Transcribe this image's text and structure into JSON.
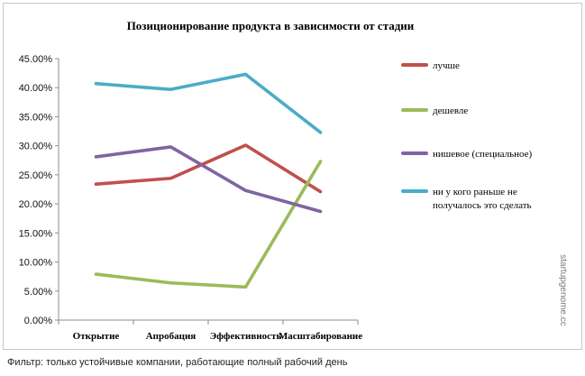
{
  "chart_data": {
    "type": "line",
    "title": "Позиционирование продукта в зависимости от стадии",
    "categories": [
      "Открытие",
      "Апробация",
      "Эффективность",
      "Масштабирование"
    ],
    "ylim": [
      0,
      45
    ],
    "yticks": [
      "0.00%",
      "5.00%",
      "10.00%",
      "15.00%",
      "20.00%",
      "25.00%",
      "30.00%",
      "35.00%",
      "40.00%",
      "45.00%"
    ],
    "ytick_values": [
      0,
      5,
      10,
      15,
      20,
      25,
      30,
      35,
      40,
      45
    ],
    "grid": false,
    "legend_position": "right",
    "series": [
      {
        "name": "лучше",
        "color": "#c0504d",
        "values": [
          23.4,
          24.4,
          30.1,
          22.1
        ]
      },
      {
        "name": "дешевле",
        "color": "#9bbb59",
        "values": [
          7.9,
          6.4,
          5.7,
          27.3
        ]
      },
      {
        "name": "нишевое (специальное)",
        "color": "#8064a2",
        "values": [
          28.1,
          29.8,
          22.3,
          18.7
        ]
      },
      {
        "name": "ни у кого раньше не получалось это сделать",
        "name_lines": [
          "ни у кого раньше не",
          "получалось это сделать"
        ],
        "color": "#4bacc6",
        "values": [
          40.7,
          39.7,
          42.3,
          32.3
        ]
      }
    ]
  },
  "watermark": "startupgenome.cc",
  "footnote": "Фильтр: только устойчивые компании, работающие полный рабочий день"
}
